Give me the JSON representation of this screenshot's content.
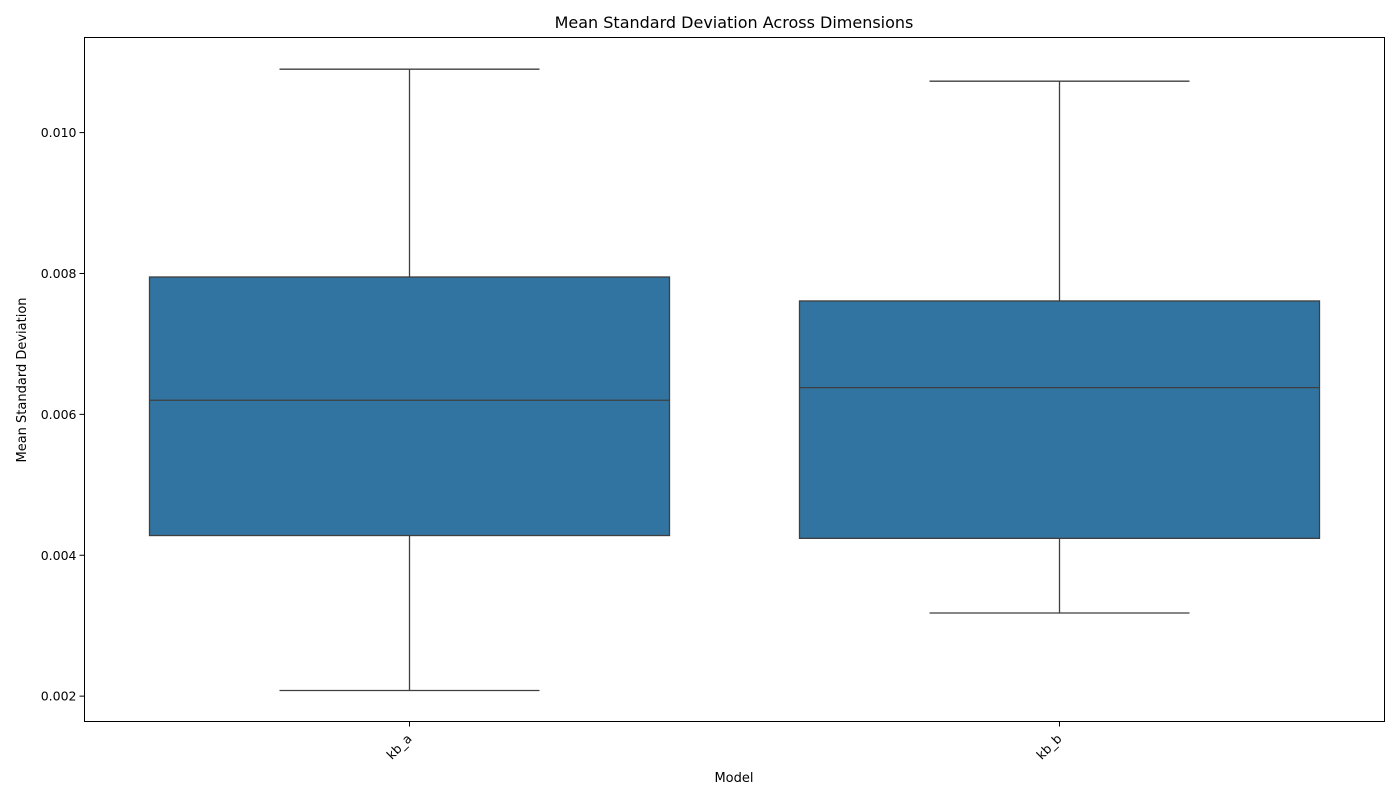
{
  "chart_data": {
    "type": "box",
    "title": "Mean Standard Deviation Across Dimensions",
    "xlabel": "Model",
    "ylabel": "Mean Standard Deviation",
    "categories": [
      "kb_a",
      "kb_b"
    ],
    "boxes": [
      {
        "name": "kb_a",
        "whislo": 0.00208,
        "q1": 0.00428,
        "median": 0.0062,
        "q3": 0.00795,
        "whishi": 0.0109
      },
      {
        "name": "kb_b",
        "whislo": 0.00318,
        "q1": 0.00424,
        "median": 0.00638,
        "q3": 0.00761,
        "whishi": 0.01073
      }
    ],
    "yticks": [
      0.002,
      0.004,
      0.006,
      0.008,
      0.01
    ],
    "ytick_labels": [
      "0.002",
      "0.004",
      "0.006",
      "0.008",
      "0.010"
    ],
    "ylim": [
      0.00164,
      0.01135
    ],
    "box_color": "#3274a1",
    "line_color": "#3f3f3f",
    "grid": false,
    "x_tick_rotation": "45 degrees"
  }
}
